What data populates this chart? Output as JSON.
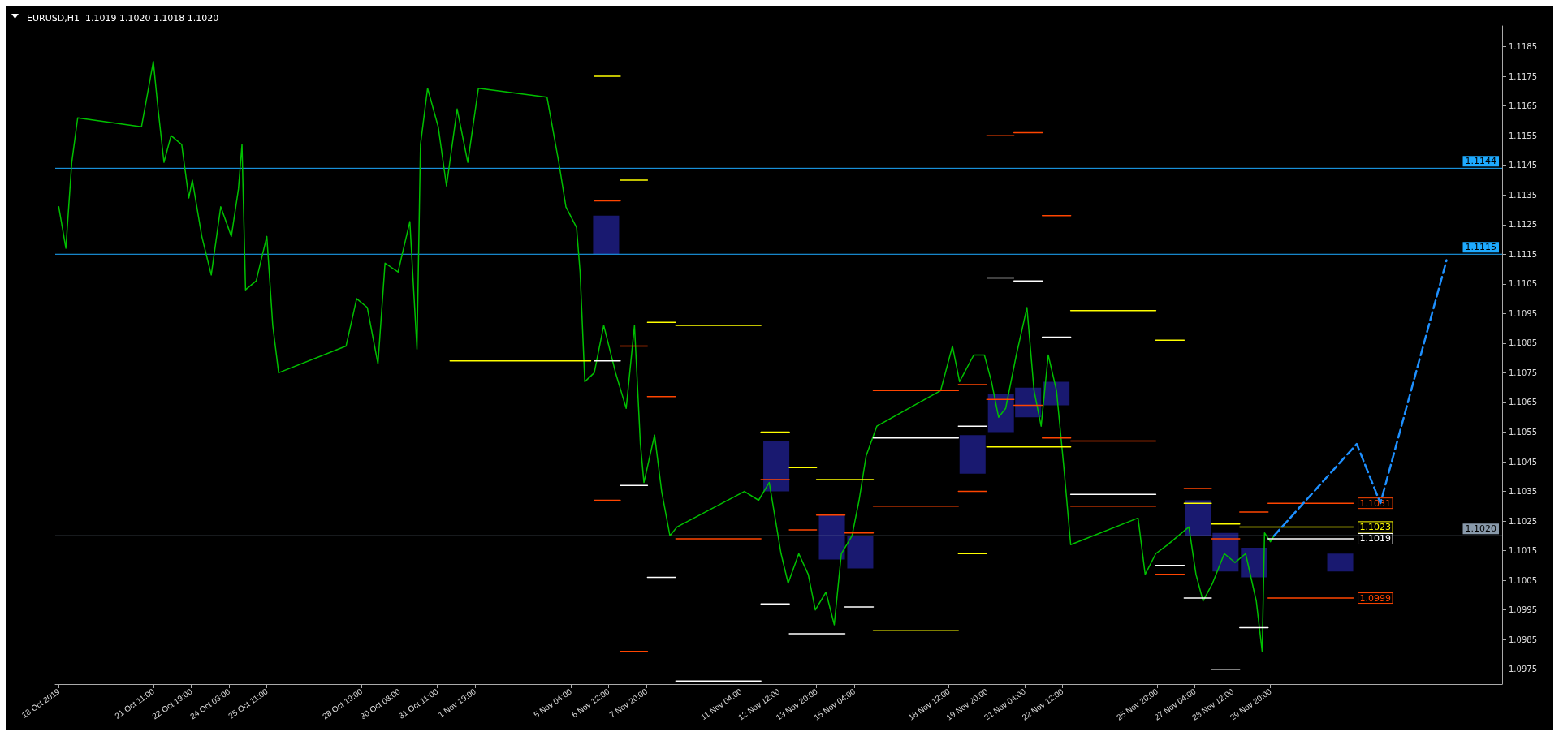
{
  "chart_data": {
    "type": "line",
    "title": "EURUSD,H1  1.1019 1.1020 1.1018 1.1020",
    "grid": false,
    "xlim": [
      "2019-10-18T00:00",
      "2019-12-08T00:00"
    ],
    "xticks": [
      {
        "value": "2019-10-18T03:00",
        "label": "18 Oct 2019"
      },
      {
        "value": "2019-10-21T11:00",
        "label": "21 Oct 11:00"
      },
      {
        "value": "2019-10-22T19:00",
        "label": "22 Oct 19:00"
      },
      {
        "value": "2019-10-24T03:00",
        "label": "24 Oct 03:00"
      },
      {
        "value": "2019-10-25T11:00",
        "label": "25 Oct 11:00"
      },
      {
        "value": "2019-10-28T19:00",
        "label": "28 Oct 19:00"
      },
      {
        "value": "2019-10-30T03:00",
        "label": "30 Oct 03:00"
      },
      {
        "value": "2019-10-31T11:00",
        "label": "31 Oct 11:00"
      },
      {
        "value": "2019-11-01T19:00",
        "label": "1 Nov 19:00"
      },
      {
        "value": "2019-11-05T04:00",
        "label": "5 Nov 04:00"
      },
      {
        "value": "2019-11-06T12:00",
        "label": "6 Nov 12:00"
      },
      {
        "value": "2019-11-07T20:00",
        "label": "7 Nov 20:00"
      },
      {
        "value": "2019-11-11T04:00",
        "label": "11 Nov 04:00"
      },
      {
        "value": "2019-11-12T12:00",
        "label": "12 Nov 12:00"
      },
      {
        "value": "2019-11-13T20:00",
        "label": "13 Nov 20:00"
      },
      {
        "value": "2019-11-15T04:00",
        "label": "15 Nov 04:00"
      },
      {
        "value": "2019-11-18T12:00",
        "label": "18 Nov 12:00"
      },
      {
        "value": "2019-11-19T20:00",
        "label": "19 Nov 20:00"
      },
      {
        "value": "2019-11-21T04:00",
        "label": "21 Nov 04:00"
      },
      {
        "value": "2019-11-22T12:00",
        "label": "22 Nov 12:00"
      },
      {
        "value": "2019-11-25T20:00",
        "label": "25 Nov 20:00"
      },
      {
        "value": "2019-11-27T04:00",
        "label": "27 Nov 04:00"
      },
      {
        "value": "2019-11-28T12:00",
        "label": "28 Nov 12:00"
      },
      {
        "value": "2019-11-29T20:00",
        "label": "29 Nov 20:00"
      }
    ],
    "ylim": [
      1.097,
      1.1192
    ],
    "yticks": [
      1.0975,
      1.0985,
      1.0995,
      1.1005,
      1.1015,
      1.1025,
      1.1035,
      1.1045,
      1.1055,
      1.1065,
      1.1075,
      1.1085,
      1.1095,
      1.1105,
      1.1115,
      1.1125,
      1.1135,
      1.1145,
      1.1155,
      1.1165,
      1.1175,
      1.1185
    ],
    "series": [
      {
        "type": "bar",
        "color": "#191970",
        "x": [
          "2019-11-06T10:00",
          "2019-11-12T10:00",
          "2019-11-14T09:00",
          "2019-11-15T09:00",
          "2019-11-19T08:00",
          "2019-11-20T08:00",
          "2019-11-21T07:00",
          "2019-11-22T07:00",
          "2019-11-27T07:00",
          "2019-11-28T06:00",
          "2019-11-29T06:00",
          "2019-12-02T07:00"
        ],
        "base": [
          1.1115,
          1.1035,
          1.1012,
          1.1009,
          1.1041,
          1.1055,
          1.106,
          1.1064,
          1.102,
          1.1008,
          1.1006,
          1.1008
        ],
        "values": [
          0.0013,
          0.0017,
          0.0015,
          0.0011,
          0.0013,
          0.0013,
          0.001,
          0.0008,
          0.0012,
          0.0013,
          0.001,
          0.0006
        ]
      },
      {
        "color": "#00c000",
        "x": [
          "2019-10-18T03:00",
          "2019-10-18T09:00",
          "2019-10-18T14:00",
          "2019-10-18T19:00",
          "2019-10-21T01:00",
          "2019-10-21T11:00",
          "2019-10-21T15:00",
          "2019-10-21T20:00",
          "2019-10-22T02:00",
          "2019-10-22T11:00",
          "2019-10-22T17:00",
          "2019-10-22T20:00",
          "2019-10-23T04:00",
          "2019-10-23T12:00",
          "2019-10-23T20:00",
          "2019-10-24T05:00",
          "2019-10-24T11:00",
          "2019-10-24T14:00",
          "2019-10-24T17:00",
          "2019-10-25T02:00",
          "2019-10-25T11:00",
          "2019-10-25T16:00",
          "2019-10-25T21:00",
          "2019-10-28T06:00",
          "2019-10-28T15:00",
          "2019-10-29T00:00",
          "2019-10-29T09:00",
          "2019-10-29T15:00",
          "2019-10-30T02:00",
          "2019-10-30T12:00",
          "2019-10-30T18:00",
          "2019-10-30T21:00",
          "2019-10-31T03:00",
          "2019-10-31T12:00",
          "2019-10-31T19:00",
          "2019-11-01T04:00",
          "2019-11-01T13:00",
          "2019-11-01T22:00",
          "2019-11-04T08:00",
          "2019-11-04T18:00",
          "2019-11-05T00:00",
          "2019-11-05T09:00",
          "2019-11-05T12:00",
          "2019-11-05T16:00",
          "2019-11-06T00:00",
          "2019-11-06T08:00",
          "2019-11-06T18:00",
          "2019-11-07T03:00",
          "2019-11-07T10:00",
          "2019-11-07T15:00",
          "2019-11-07T18:00",
          "2019-11-08T03:00",
          "2019-11-08T09:00",
          "2019-11-08T16:00",
          "2019-11-08T22:00",
          "2019-11-11T07:00",
          "2019-11-11T19:00",
          "2019-11-12T04:00",
          "2019-11-12T14:00",
          "2019-11-12T20:00",
          "2019-11-13T05:00",
          "2019-11-13T13:00",
          "2019-11-13T19:00",
          "2019-11-14T04:00",
          "2019-11-14T11:00",
          "2019-11-14T17:00",
          "2019-11-15T02:00",
          "2019-11-15T08:00",
          "2019-11-15T14:00",
          "2019-11-15T23:00",
          "2019-11-18T05:00",
          "2019-11-18T15:00",
          "2019-11-18T21:00",
          "2019-11-19T09:00",
          "2019-11-19T18:00",
          "2019-11-20T00:00",
          "2019-11-20T06:00",
          "2019-11-20T12:00",
          "2019-11-20T21:00",
          "2019-11-21T06:00",
          "2019-11-21T12:00",
          "2019-11-21T18:00",
          "2019-11-22T00:00",
          "2019-11-22T07:00",
          "2019-11-22T13:00",
          "2019-11-22T19:00",
          "2019-11-25T04:00",
          "2019-11-25T10:00",
          "2019-11-25T19:00",
          "2019-11-26T05:00",
          "2019-11-26T14:00",
          "2019-11-26T23:00",
          "2019-11-27T05:00",
          "2019-11-27T11:00",
          "2019-11-27T19:00",
          "2019-11-28T05:00",
          "2019-11-28T14:00",
          "2019-11-28T23:00",
          "2019-11-29T08:00",
          "2019-11-29T13:00",
          "2019-11-29T15:00",
          "2019-11-29T20:00",
          "2019-11-29T23:00"
        ],
        "values": [
          1.1131,
          1.1117,
          1.1146,
          1.1161,
          1.1158,
          1.118,
          1.1164,
          1.1146,
          1.1155,
          1.1152,
          1.1134,
          1.114,
          1.1121,
          1.1108,
          1.1131,
          1.1121,
          1.1137,
          1.1152,
          1.1103,
          1.1106,
          1.1121,
          1.1091,
          1.1075,
          1.1084,
          1.11,
          1.1097,
          1.1078,
          1.1112,
          1.1109,
          1.1126,
          1.1083,
          1.1152,
          1.1171,
          1.1158,
          1.1138,
          1.1164,
          1.1146,
          1.1171,
          1.1168,
          1.1146,
          1.1131,
          1.1124,
          1.1109,
          1.1072,
          1.1075,
          1.1091,
          1.1075,
          1.1063,
          1.1091,
          1.1051,
          1.1038,
          1.1054,
          1.1035,
          1.102,
          1.1023,
          1.1035,
          1.1032,
          1.1038,
          1.1014,
          1.1004,
          1.1014,
          1.1007,
          1.0995,
          1.1001,
          1.099,
          1.1014,
          1.102,
          1.1032,
          1.1047,
          1.1057,
          1.1069,
          1.1084,
          1.1072,
          1.1081,
          1.1081,
          1.1072,
          1.106,
          1.1063,
          1.1081,
          1.1097,
          1.1069,
          1.1057,
          1.1081,
          1.1069,
          1.1044,
          1.1017,
          1.1026,
          1.1007,
          1.1014,
          1.1017,
          1.102,
          1.1023,
          1.1007,
          1.0998,
          1.1004,
          1.1014,
          1.1011,
          1.1014,
          1.0998,
          1.0981,
          1.1021,
          1.1018,
          1.102
        ]
      },
      {
        "type": "line",
        "color": "#ffff00",
        "x": [
          "2019-10-31T22:00",
          "2019-11-05T21:00",
          null,
          "2019-11-06T00:00",
          "2019-11-06T22:00",
          null,
          "2019-11-06T22:00",
          "2019-11-07T21:00",
          null,
          "2019-11-07T21:00",
          "2019-11-08T21:00",
          null,
          "2019-11-08T21:00",
          "2019-11-11T21:00",
          null,
          "2019-11-11T21:00",
          "2019-11-12T21:00",
          null,
          "2019-11-12T21:00",
          "2019-11-13T20:00",
          null,
          "2019-11-13T20:00",
          "2019-11-14T20:00",
          null,
          "2019-11-14T20:00",
          "2019-11-15T20:00",
          null,
          "2019-11-15T20:00",
          "2019-11-18T20:00",
          null,
          "2019-11-18T20:00",
          "2019-11-19T20:00",
          null,
          "2019-11-19T20:00",
          "2019-11-20T19:00",
          null,
          "2019-11-20T19:00",
          "2019-11-21T19:00",
          null,
          "2019-11-21T19:00",
          "2019-11-22T19:00",
          null,
          "2019-11-22T19:00",
          "2019-11-25T19:00",
          null,
          "2019-11-25T19:00",
          "2019-11-26T19:00",
          null,
          "2019-11-26T19:00",
          "2019-11-27T18:00",
          null,
          "2019-11-27T18:00",
          "2019-11-28T18:00",
          null,
          "2019-11-28T18:00",
          "2019-11-29T18:00",
          null,
          "2019-11-29T18:00",
          "2019-12-02T18:00"
        ],
        "values": [
          1.1079,
          1.1079,
          null,
          1.1175,
          1.1175,
          null,
          1.114,
          1.114,
          null,
          1.1092,
          1.1092,
          null,
          1.1091,
          1.1091,
          null,
          1.1055,
          1.1055,
          null,
          1.1043,
          1.1043,
          null,
          1.1039,
          1.1039,
          null,
          1.1039,
          1.1039,
          null,
          1.0988,
          1.0988,
          null,
          1.1014,
          1.1014,
          null,
          1.105,
          1.105,
          null,
          1.105,
          1.105,
          null,
          1.105,
          1.105,
          null,
          1.1096,
          1.1096,
          null,
          1.1086,
          1.1086,
          null,
          1.1031,
          1.1031,
          null,
          1.1024,
          1.1024,
          null,
          1.1023,
          1.1023,
          null,
          1.1023,
          1.1023
        ]
      },
      {
        "type": "line",
        "color": "#ffffff",
        "x": [
          "2019-11-06T00:00",
          "2019-11-06T22:00",
          null,
          "2019-11-06T22:00",
          "2019-11-07T21:00",
          null,
          "2019-11-07T21:00",
          "2019-11-08T21:00",
          null,
          "2019-11-08T21:00",
          "2019-11-11T21:00",
          null,
          "2019-11-11T21:00",
          "2019-11-12T21:00",
          null,
          "2019-11-12T21:00",
          "2019-11-13T20:00",
          null,
          "2019-11-13T20:00",
          "2019-11-14T20:00",
          null,
          "2019-11-14T20:00",
          "2019-11-15T20:00",
          null,
          "2019-11-15T20:00",
          "2019-11-18T20:00",
          null,
          "2019-11-18T20:00",
          "2019-11-19T20:00",
          null,
          "2019-11-19T20:00",
          "2019-11-20T19:00",
          null,
          "2019-11-20T19:00",
          "2019-11-21T19:00",
          null,
          "2019-11-21T19:00",
          "2019-11-22T19:00",
          null,
          "2019-11-22T19:00",
          "2019-11-25T19:00",
          null,
          "2019-11-25T19:00",
          "2019-11-26T19:00",
          null,
          "2019-11-26T19:00",
          "2019-11-27T18:00",
          null,
          "2019-11-27T18:00",
          "2019-11-28T18:00",
          null,
          "2019-11-28T18:00",
          "2019-11-29T18:00",
          null,
          "2019-11-29T18:00",
          "2019-12-02T18:00"
        ],
        "values": [
          1.1079,
          1.1079,
          null,
          1.1037,
          1.1037,
          null,
          1.1006,
          1.1006,
          null,
          1.0971,
          1.0971,
          null,
          1.0997,
          1.0997,
          null,
          1.0987,
          1.0987,
          null,
          1.0987,
          1.0987,
          null,
          1.0996,
          1.0996,
          null,
          1.1053,
          1.1053,
          null,
          1.1057,
          1.1057,
          null,
          1.1107,
          1.1107,
          null,
          1.1106,
          1.1106,
          null,
          1.1087,
          1.1087,
          null,
          1.1034,
          1.1034,
          null,
          1.101,
          1.101,
          null,
          1.0999,
          1.0999,
          null,
          1.0975,
          1.0975,
          null,
          1.0989,
          1.0989,
          null,
          1.1019,
          1.1019
        ]
      },
      {
        "type": "line",
        "color": "#ff4500",
        "x": [
          "2019-11-06T00:00",
          "2019-11-06T22:00",
          null,
          "2019-11-06T22:00",
          "2019-11-07T21:00",
          null,
          "2019-11-07T21:00",
          "2019-11-08T21:00",
          null,
          "2019-11-08T21:00",
          "2019-11-11T21:00",
          null,
          "2019-11-11T21:00",
          "2019-11-12T21:00",
          null,
          "2019-11-12T21:00",
          "2019-11-13T20:00",
          null,
          "2019-11-13T20:00",
          "2019-11-14T20:00",
          null,
          "2019-11-14T20:00",
          "2019-11-15T20:00",
          null,
          "2019-11-15T20:00",
          "2019-11-18T20:00",
          null,
          "2019-11-18T20:00",
          "2019-11-19T20:00",
          null,
          "2019-11-19T20:00",
          "2019-11-20T19:00",
          null,
          "2019-11-20T19:00",
          "2019-11-21T19:00",
          null,
          "2019-11-21T19:00",
          "2019-11-22T19:00",
          null,
          "2019-11-22T19:00",
          "2019-11-25T19:00",
          null,
          "2019-11-25T19:00",
          "2019-11-26T19:00",
          null,
          "2019-11-26T19:00",
          "2019-11-27T18:00",
          null,
          "2019-11-27T18:00",
          "2019-11-28T18:00",
          null,
          "2019-11-28T18:00",
          "2019-11-29T18:00",
          null,
          "2019-11-29T18:00",
          "2019-12-02T18:00"
        ],
        "values": [
          1.1133,
          1.1133,
          null,
          1.1084,
          1.1084,
          null,
          1.1067,
          1.1067,
          null,
          1.1019,
          1.1019,
          null,
          1.1039,
          1.1039,
          null,
          1.1022,
          1.1022,
          null,
          1.1027,
          1.1027,
          null,
          1.1021,
          1.1021,
          null,
          1.1069,
          1.1069,
          null,
          1.1071,
          1.1071,
          null,
          1.1155,
          1.1155,
          null,
          1.1156,
          1.1156,
          null,
          1.1128,
          1.1128,
          null,
          1.1052,
          1.1052,
          null,
          1.1007,
          1.1007,
          null,
          1.1036,
          1.1036,
          null,
          1.1019,
          1.1019,
          null,
          1.1028,
          1.1028,
          null,
          1.1031,
          1.1031
        ]
      },
      {
        "type": "line",
        "color": "#ff4500",
        "x": [
          "2019-11-06T00:00",
          "2019-11-06T22:00",
          null,
          "2019-11-06T22:00",
          "2019-11-07T21:00",
          null,
          "2019-11-15T20:00",
          "2019-11-18T20:00",
          null,
          "2019-11-18T20:00",
          "2019-11-19T20:00",
          null,
          "2019-11-19T20:00",
          "2019-11-20T19:00",
          null,
          "2019-11-20T19:00",
          "2019-11-21T19:00",
          null,
          "2019-11-21T19:00",
          "2019-11-22T19:00",
          null,
          "2019-11-22T19:00",
          "2019-11-25T19:00",
          null,
          "2019-11-29T18:00",
          "2019-12-02T18:00"
        ],
        "values": [
          1.1032,
          1.1032,
          null,
          1.0981,
          1.0981,
          null,
          1.103,
          1.103,
          null,
          1.1035,
          1.1035,
          null,
          1.1066,
          1.1066,
          null,
          1.1064,
          1.1064,
          null,
          1.1053,
          1.1053,
          null,
          1.103,
          1.103,
          null,
          1.0999,
          1.0999
        ]
      },
      {
        "type": "line",
        "color": "#1e90ff",
        "line_style": "dashed",
        "x": [
          "2019-11-29T23:00",
          "2019-12-02T21:00",
          "2019-12-03T17:00",
          "2019-12-06T01:00"
        ],
        "values": [
          1.102,
          1.1051,
          1.1031,
          1.1113
        ]
      }
    ],
    "ref_lines": [
      {
        "axis": "y",
        "value": 1.1144,
        "label": "1.1144",
        "color": "#1eaaff"
      },
      {
        "axis": "y",
        "value": 1.1115,
        "label": "1.1115",
        "color": "#1eaaff"
      },
      {
        "axis": "y",
        "value": 1.102,
        "label": "1.1020",
        "color": "#8899aa"
      }
    ],
    "annotations": [
      {
        "text": "1.1031",
        "x": "2019-12-02T18:00",
        "y": 1.1031
      },
      {
        "text": "1.1023",
        "x": "2019-12-02T18:00",
        "y": 1.1023
      },
      {
        "text": "1.1019",
        "x": "2019-12-02T18:00",
        "y": 1.1019
      },
      {
        "text": "1.0999",
        "x": "2019-12-02T18:00",
        "y": 1.0999
      }
    ]
  }
}
